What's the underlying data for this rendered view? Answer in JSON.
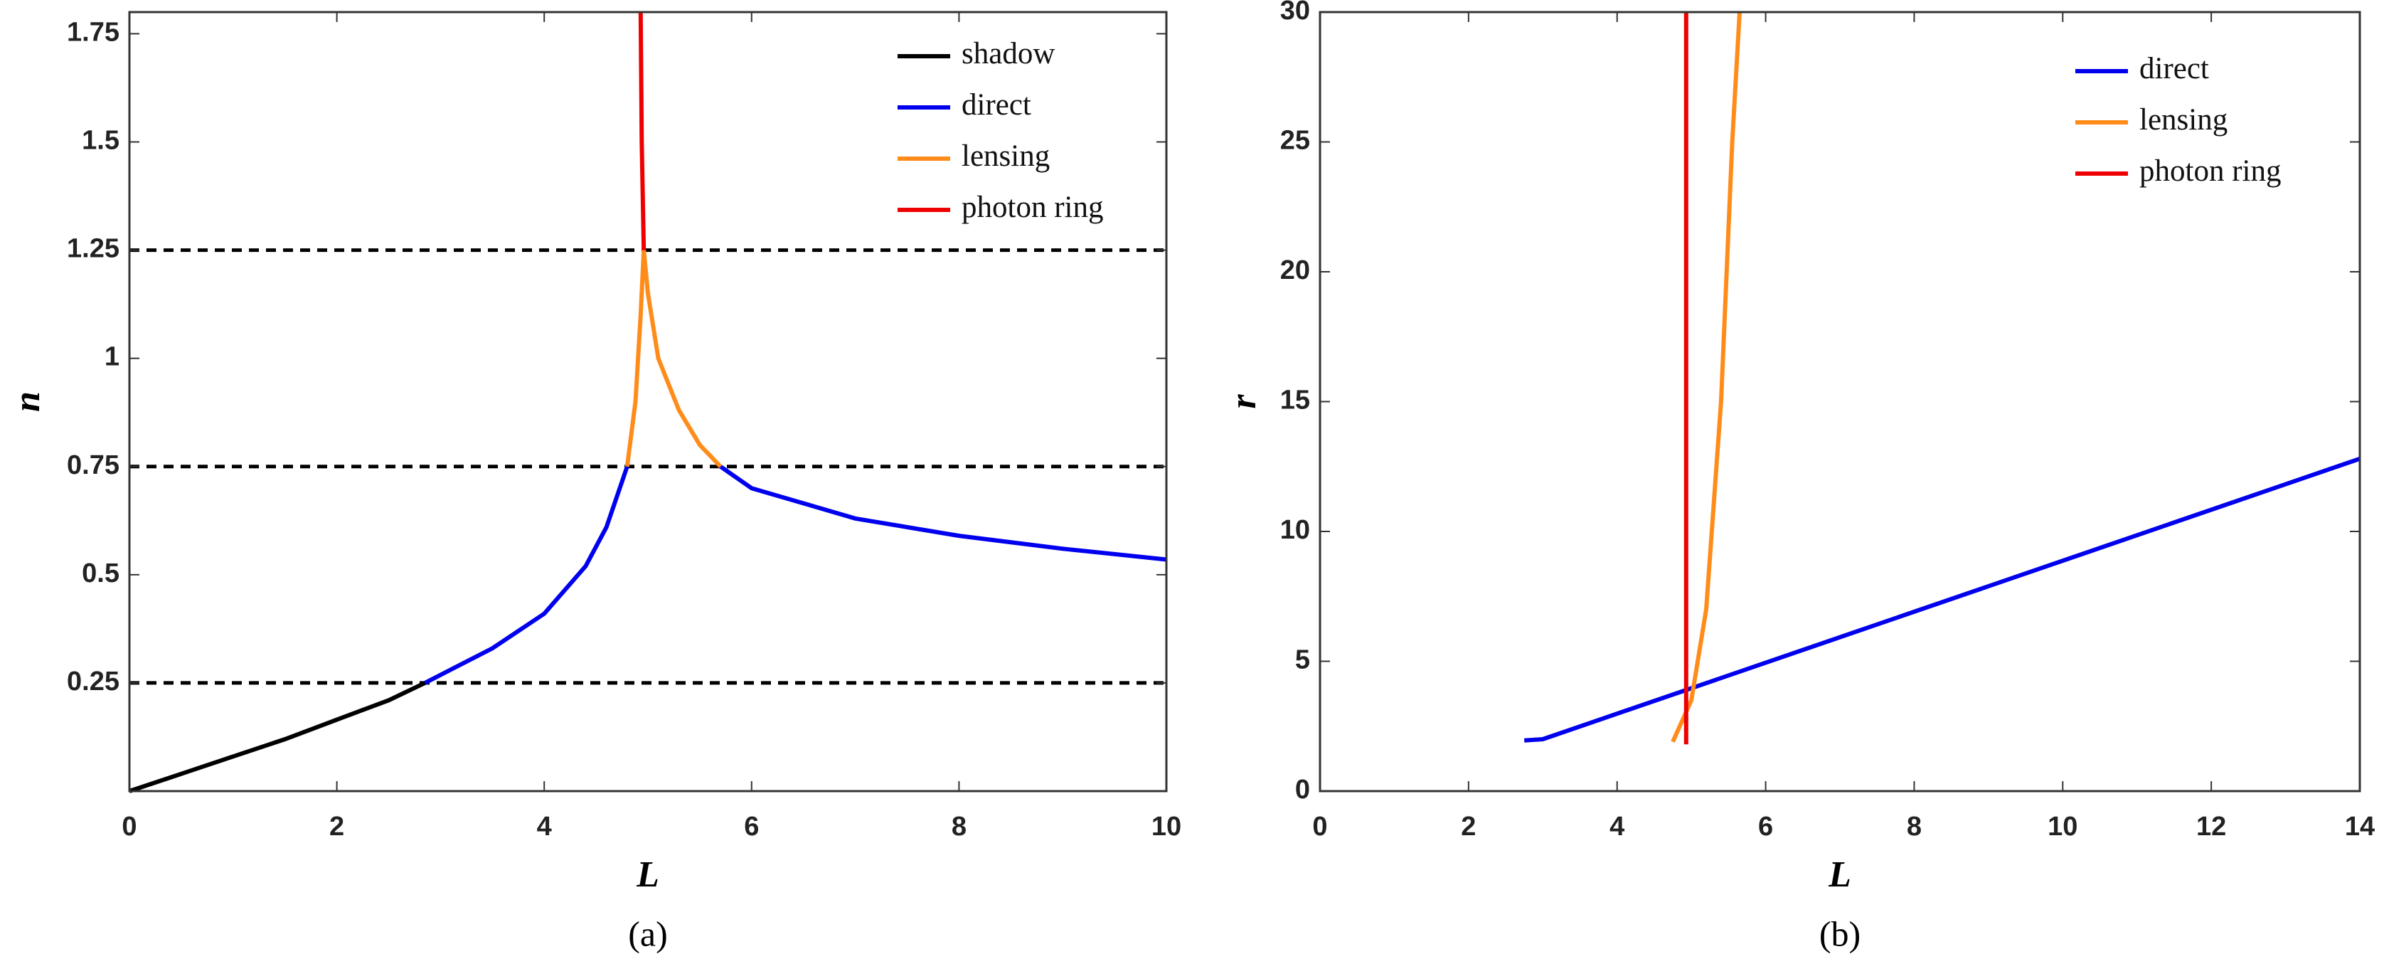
{
  "chart_data": [
    {
      "type": "line",
      "caption": "(a)",
      "x_label": "L",
      "y_label": "n",
      "xlim": [
        0,
        10
      ],
      "ylim": [
        0,
        1.8
      ],
      "xticks": [
        0,
        2,
        4,
        6,
        8,
        10
      ],
      "yticks": [
        0.25,
        0.5,
        0.75,
        1,
        1.25,
        1.5,
        1.75
      ],
      "hlines": [
        0.25,
        0.75,
        1.25
      ],
      "hline_color": "#000000",
      "legend": "upper right",
      "series": [
        {
          "name": "shadow",
          "color": "#000000",
          "x": [
            0,
            0.5,
            1,
            1.5,
            2,
            2.5,
            2.85
          ],
          "values": [
            0,
            0.04,
            0.08,
            0.12,
            0.165,
            0.21,
            0.25
          ]
        },
        {
          "name": "direct",
          "color": "#0000ee",
          "x": [
            2.85,
            3.5,
            4,
            4.4,
            4.6,
            4.8,
            null,
            5.7,
            6,
            7,
            8,
            9,
            10
          ],
          "values": [
            0.25,
            0.33,
            0.41,
            0.52,
            0.61,
            0.75,
            null,
            0.75,
            0.7,
            0.63,
            0.59,
            0.56,
            0.535
          ]
        },
        {
          "name": "lensing",
          "color": "#ff8c1a",
          "x": [
            4.8,
            4.88,
            4.93,
            4.96,
            5.0,
            5.1,
            5.3,
            5.5,
            5.7
          ],
          "values": [
            0.75,
            0.9,
            1.1,
            1.25,
            1.15,
            1.0,
            0.88,
            0.8,
            0.75
          ]
        },
        {
          "name": "photon ring",
          "color": "#ee0000",
          "x": [
            4.93,
            4.94,
            4.96
          ],
          "values": [
            1.8,
            1.5,
            1.25
          ]
        }
      ]
    },
    {
      "type": "line",
      "caption": "(b)",
      "x_label": "L",
      "y_label": "r",
      "xlim": [
        0,
        14
      ],
      "ylim": [
        0,
        30
      ],
      "xticks": [
        0,
        2,
        4,
        6,
        8,
        10,
        12,
        14
      ],
      "yticks": [
        0,
        5,
        10,
        15,
        20,
        25,
        30
      ],
      "legend": "upper right",
      "series": [
        {
          "name": "direct",
          "color": "#0000ee",
          "x": [
            2.75,
            3,
            14
          ],
          "values": [
            1.95,
            2.0,
            12.8
          ]
        },
        {
          "name": "lensing",
          "color": "#ff8c1a",
          "x": [
            4.75,
            5.0,
            5.2,
            5.4,
            5.55,
            5.65
          ],
          "values": [
            1.9,
            3.5,
            7,
            15,
            25,
            30
          ]
        },
        {
          "name": "photon ring",
          "color": "#ee0000",
          "x": [
            4.93,
            4.93
          ],
          "values": [
            1.8,
            30
          ]
        }
      ]
    }
  ]
}
